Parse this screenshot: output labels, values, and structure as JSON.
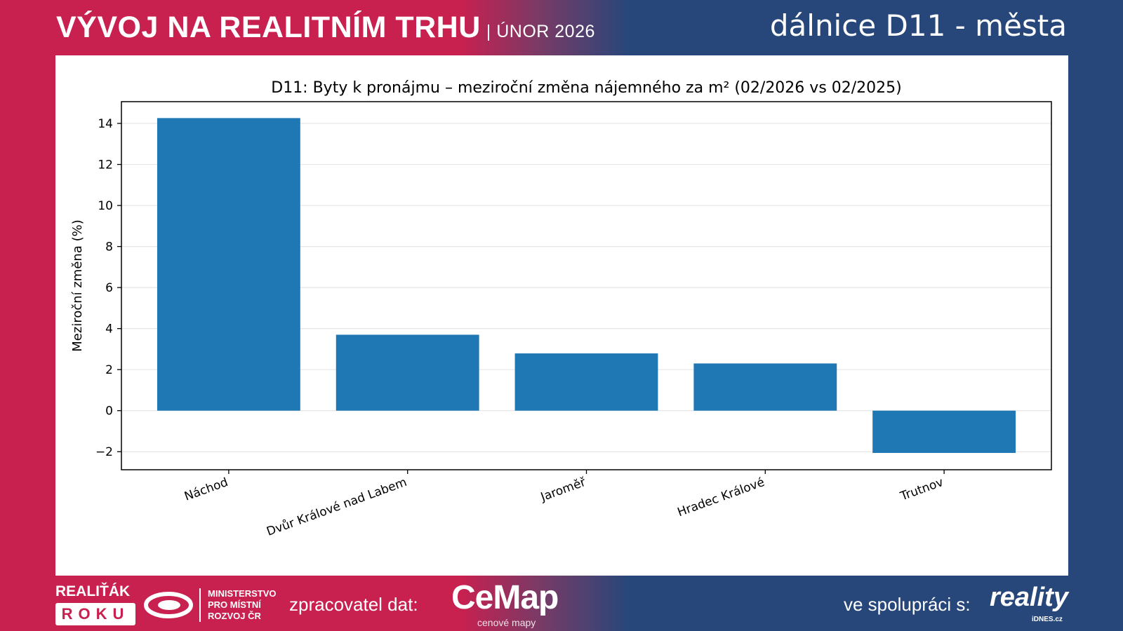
{
  "header": {
    "title": "VÝVOJ NA REALITNÍM TRHU",
    "subtitle": "| ÚNOR 2026",
    "region": "dálnice D11 - města"
  },
  "colors": {
    "left_band": "#c8204f",
    "right_band": "#27477a",
    "bar": "#1f77b4"
  },
  "chart_data": {
    "type": "bar",
    "title": "D11: Byty k pronájmu – meziroční změna nájemného za m² (02/2026 vs 02/2025)",
    "xlabel": "",
    "ylabel": "Meziroční změna (%)",
    "categories": [
      "Náchod",
      "Dvůr Králové nad Labem",
      "Jaroměř",
      "Hradec Králové",
      "Trutnov"
    ],
    "values": [
      14.26,
      3.7,
      2.79,
      2.3,
      -2.06
    ],
    "ylim": [
      -2.88,
      15.06
    ],
    "yticks": [
      -2,
      0,
      2,
      4,
      6,
      8,
      10,
      12,
      14
    ],
    "ytick_labels": [
      "−2",
      "0",
      "2",
      "4",
      "6",
      "8",
      "10",
      "12",
      "14"
    ],
    "grid": "horizontal",
    "xtick_rotation": 20
  },
  "footer": {
    "realitak": "REALIŤÁK",
    "roku": "ROKU",
    "ministry": [
      "MINISTERSTVO",
      "PRO MÍSTNÍ",
      "ROZVOJ ČR"
    ],
    "processor_label": "zpracovatel dat:",
    "cemap": "CeMap",
    "cemap_sub": "cenové mapy",
    "coop_label": "ve spolupráci s:",
    "reality": "reality",
    "idnes": "iDNES.cz"
  }
}
